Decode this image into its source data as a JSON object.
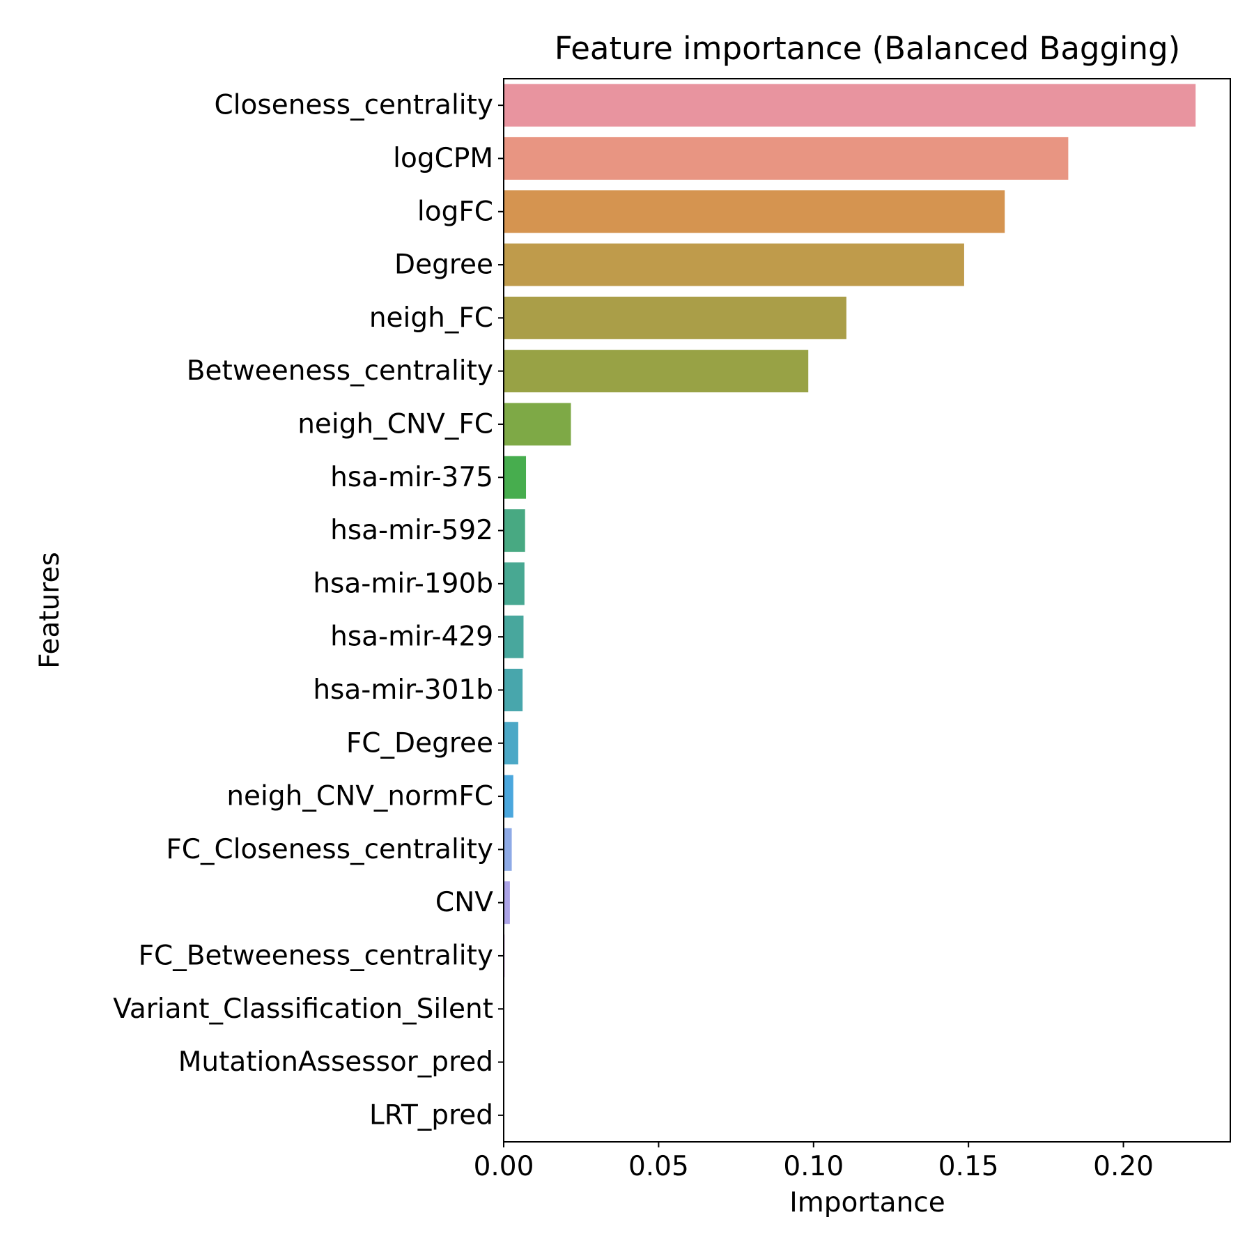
{
  "chart_data": {
    "type": "bar",
    "orientation": "horizontal",
    "title": "Feature importance (Balanced Bagging)",
    "xlabel": "Importance",
    "ylabel": "Features",
    "xlim": [
      0,
      0.2345
    ],
    "xticks": [
      0.0,
      0.05,
      0.1,
      0.15,
      0.2
    ],
    "xtick_labels": [
      "0.00",
      "0.05",
      "0.10",
      "0.15",
      "0.20"
    ],
    "grid": false,
    "legend": "none",
    "categories": [
      "Closeness_centrality",
      "logCPM",
      "logFC",
      "Degree",
      "neigh_FC",
      "Betweeness_centrality",
      "neigh_CNV_FC",
      "hsa-mir-375",
      "hsa-mir-592",
      "hsa-mir-190b",
      "hsa-mir-429",
      "hsa-mir-301b",
      "FC_Degree",
      "neigh_CNV_normFC",
      "FC_Closeness_centrality",
      "CNV",
      "FC_Betweeness_centrality",
      "Variant_Classification_Silent",
      "MutationAssessor_pred",
      "LRT_pred"
    ],
    "values": [
      0.2233,
      0.1822,
      0.1617,
      0.1486,
      0.1106,
      0.0983,
      0.0217,
      0.0072,
      0.0069,
      0.0067,
      0.0064,
      0.0061,
      0.0047,
      0.0031,
      0.0026,
      0.002,
      0.0003,
      0.0001,
      0.0,
      0.0
    ],
    "colors": [
      "#e8949f",
      "#e89582",
      "#d59450",
      "#bf9b4b",
      "#aa9e48",
      "#98a245",
      "#7ea946",
      "#47ad4e",
      "#48a982",
      "#48a892",
      "#48a79d",
      "#48a6ac",
      "#4ca8c6",
      "#4ba7dd",
      "#8eaae6",
      "#aca3e7",
      "#cd96e0",
      "#dd8fd6",
      "#e38fc3",
      "#e490b1"
    ]
  }
}
